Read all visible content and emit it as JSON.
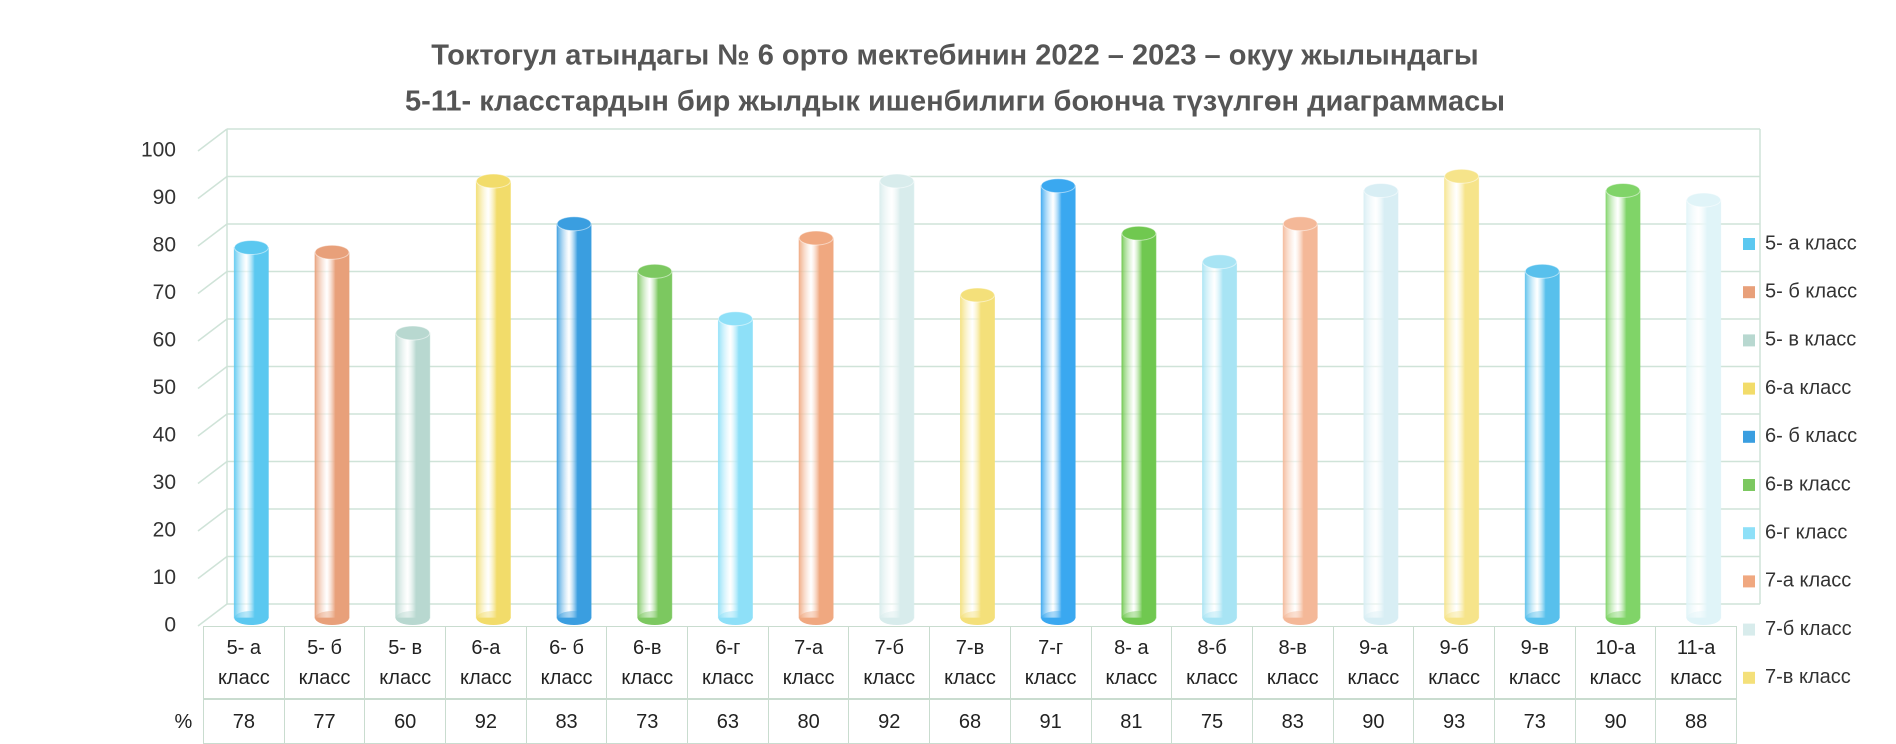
{
  "chart_data": {
    "type": "bar",
    "title": "Токтогул атындагы № 6 орто мектебинин 2022 – 2023 – окуу жылындагы",
    "subtitle": "5-11- класстардын  бир жылдык ишенбилиги  боюнча түзүлгөн диаграммасы",
    "categories": [
      "5- а класс",
      "5- б класс",
      "5- в класс",
      "6-а класс",
      "6- б класс",
      "6-в класс",
      "6-г класс",
      "7-а класс",
      "7-б класс",
      "7-в класс",
      "7-г класс",
      "8- а класс",
      "8-б класс",
      "8-в класс",
      "9-а класс",
      "9-б класс",
      "9-в класс",
      "10-а класс",
      "11-а класс"
    ],
    "values": [
      78,
      77,
      60,
      92,
      83,
      73,
      63,
      80,
      92,
      68,
      91,
      81,
      75,
      83,
      90,
      93,
      73,
      90,
      88
    ],
    "colors": [
      "#5bc8f0",
      "#e8a07a",
      "#b8d8d0",
      "#f2dc6a",
      "#3a9ee0",
      "#7cc860",
      "#8ee0f8",
      "#f0a880",
      "#d8ecec",
      "#f4e07a",
      "#3aa8f0",
      "#70c850",
      "#a8e4f4",
      "#f4b898",
      "#d8eef4",
      "#f6e48a",
      "#58c0ec",
      "#80d468",
      "#e0f4f8"
    ],
    "legend": [
      "5- а класс",
      "5- б класс",
      "5- в класс",
      "6-а класс",
      "6- б класс",
      "6-в класс",
      "6-г класс",
      "7-а класс",
      "7-б класс",
      "7-в класс"
    ],
    "row_label": "%",
    "ylim": [
      0,
      100
    ],
    "yticks": [
      0,
      10,
      20,
      30,
      40,
      50,
      60,
      70,
      80,
      90,
      100
    ],
    "grid": true
  }
}
